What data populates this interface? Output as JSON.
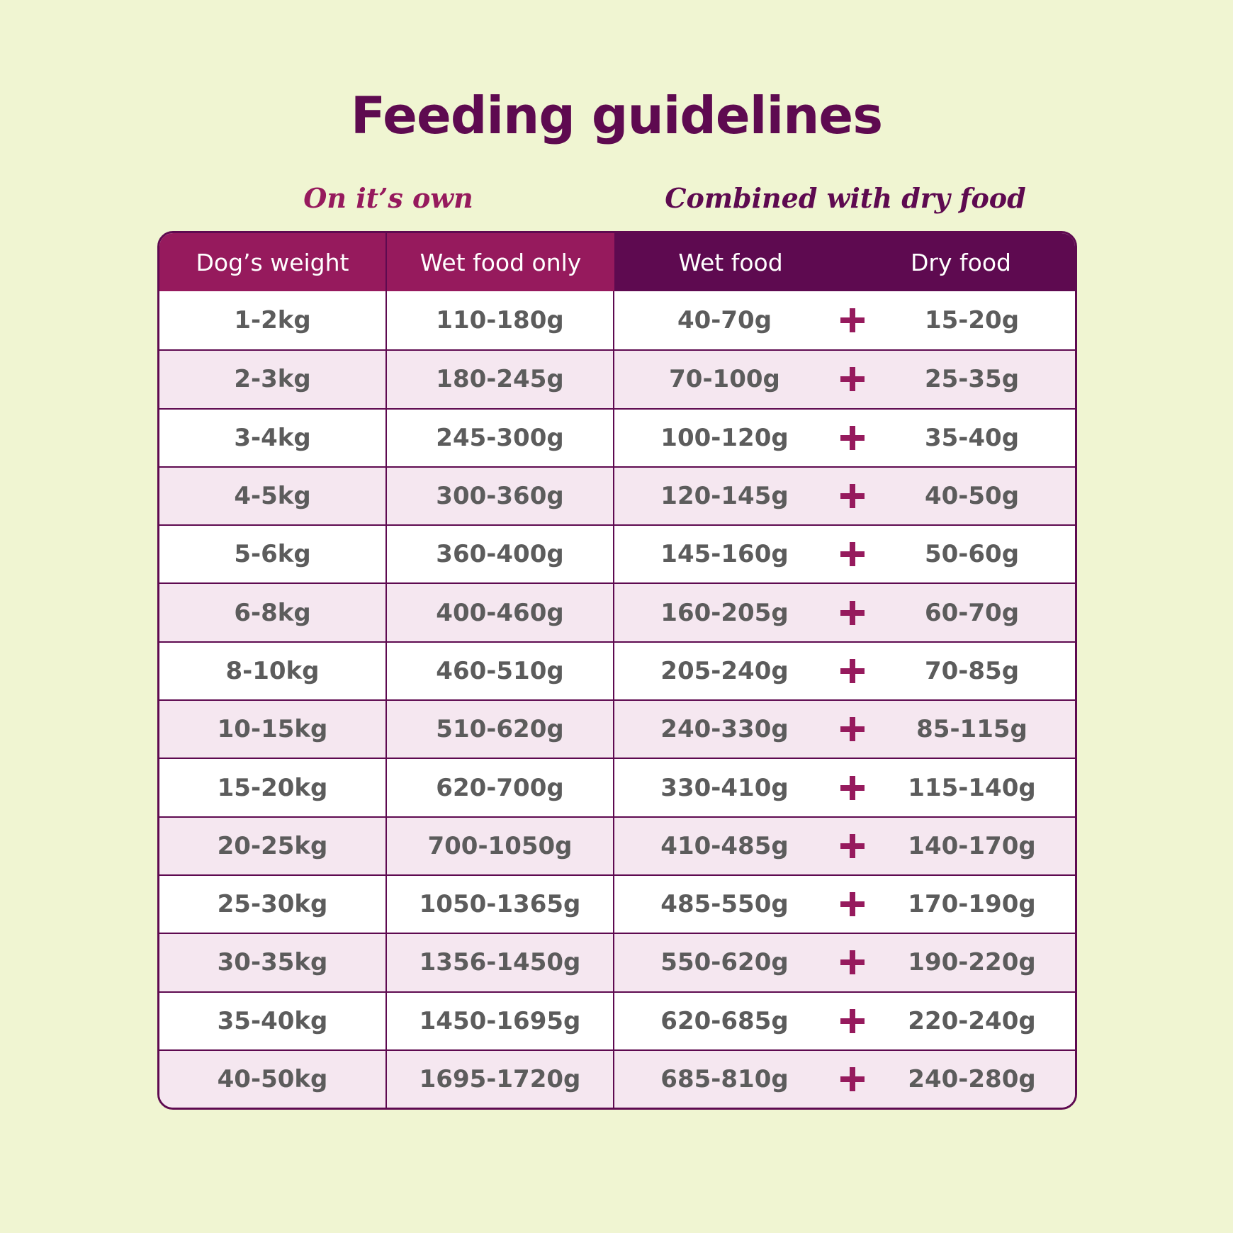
{
  "title": "Feeding guidelines",
  "subheads": {
    "own": "On it’s own",
    "combined": "Combined with dry food"
  },
  "colors": {
    "background": "#f0f5d2",
    "title": "#5e0a50",
    "header_magenta": "#961a5d",
    "header_plum": "#5e0a50",
    "alt_row": "#f5e7f0",
    "plus_icon": "#961a5d",
    "cell_text": "#5c5c5c"
  },
  "table": {
    "headers": {
      "weight": "Dog’s weight",
      "wet_only": "Wet food only",
      "wet": "Wet food",
      "dry": "Dry food"
    },
    "plus_icon": "plus-icon",
    "rows": [
      {
        "weight": "1-2kg",
        "wet_only": "110-180g",
        "wet": "40-70g",
        "dry": "15-20g"
      },
      {
        "weight": "2-3kg",
        "wet_only": "180-245g",
        "wet": "70-100g",
        "dry": "25-35g"
      },
      {
        "weight": "3-4kg",
        "wet_only": "245-300g",
        "wet": "100-120g",
        "dry": "35-40g"
      },
      {
        "weight": "4-5kg",
        "wet_only": "300-360g",
        "wet": "120-145g",
        "dry": "40-50g"
      },
      {
        "weight": "5-6kg",
        "wet_only": "360-400g",
        "wet": "145-160g",
        "dry": "50-60g"
      },
      {
        "weight": "6-8kg",
        "wet_only": "400-460g",
        "wet": "160-205g",
        "dry": "60-70g"
      },
      {
        "weight": "8-10kg",
        "wet_only": "460-510g",
        "wet": "205-240g",
        "dry": "70-85g"
      },
      {
        "weight": "10-15kg",
        "wet_only": "510-620g",
        "wet": "240-330g",
        "dry": "85-115g"
      },
      {
        "weight": "15-20kg",
        "wet_only": "620-700g",
        "wet": "330-410g",
        "dry": "115-140g"
      },
      {
        "weight": "20-25kg",
        "wet_only": "700-1050g",
        "wet": "410-485g",
        "dry": "140-170g"
      },
      {
        "weight": "25-30kg",
        "wet_only": "1050-1365g",
        "wet": "485-550g",
        "dry": "170-190g"
      },
      {
        "weight": "30-35kg",
        "wet_only": "1356-1450g",
        "wet": "550-620g",
        "dry": "190-220g"
      },
      {
        "weight": "35-40kg",
        "wet_only": "1450-1695g",
        "wet": "620-685g",
        "dry": "220-240g"
      },
      {
        "weight": "40-50kg",
        "wet_only": "1695-1720g",
        "wet": "685-810g",
        "dry": "240-280g"
      }
    ]
  }
}
